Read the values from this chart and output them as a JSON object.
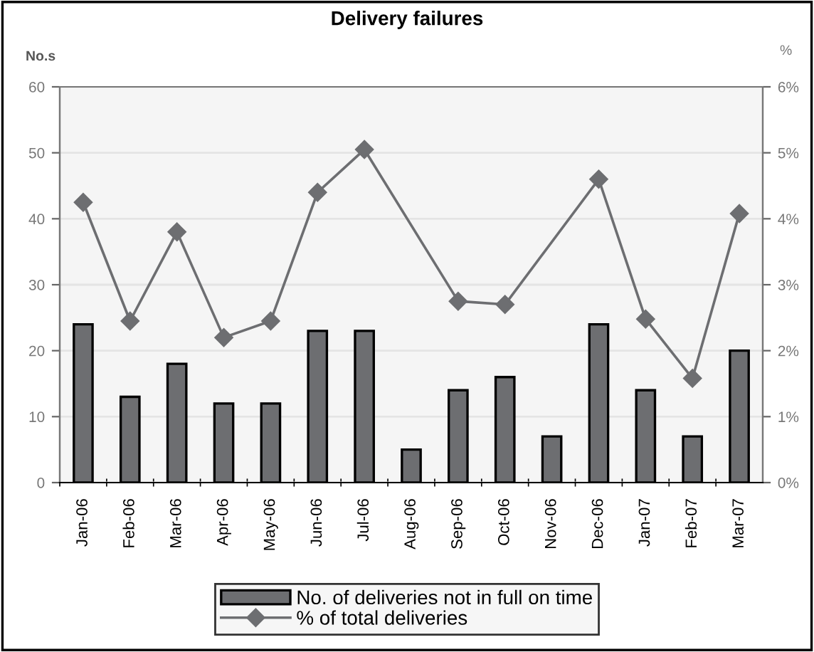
{
  "chart_data": {
    "type": "bar",
    "title": "Delivery failures",
    "ylabel": "No.s",
    "y2label": "%",
    "categories": [
      "Jan-06",
      "Feb-06",
      "Mar-06",
      "Apr-06",
      "May-06",
      "Jun-06",
      "Jul-06",
      "Aug-06",
      "Sep-06",
      "Oct-06",
      "Nov-06",
      "Dec-06",
      "Jan-07",
      "Feb-07",
      "Mar-07"
    ],
    "series": [
      {
        "name": "No. of deliveries not in full on time",
        "color": "#6d6e71",
        "values": [
          24,
          13,
          18,
          12,
          12,
          23,
          23,
          5,
          14,
          16,
          7,
          24,
          14,
          7,
          20
        ]
      },
      {
        "name": "% of total deliveries",
        "type": "line",
        "axis": "y2",
        "color": "#6d6e71",
        "marker": "diamond",
        "values": [
          4.25,
          2.45,
          3.8,
          2.2,
          2.45,
          4.4,
          5.05,
          null,
          2.75,
          2.7,
          null,
          4.6,
          2.48,
          1.58,
          4.08
        ]
      }
    ],
    "ylim": [
      0,
      60
    ],
    "yticks": [
      0,
      10,
      20,
      30,
      40,
      50,
      60
    ],
    "y2lim": [
      0,
      6
    ],
    "y2ticks": [
      {
        "value": 0,
        "label": "0%"
      },
      {
        "value": 1,
        "label": "1%"
      },
      {
        "value": 2,
        "label": "2%"
      },
      {
        "value": 3,
        "label": "3%"
      },
      {
        "value": 4,
        "label": "4%"
      },
      {
        "value": 5,
        "label": "5%"
      },
      {
        "value": 6,
        "label": "6%"
      }
    ],
    "grid": "y",
    "legend": "bottom"
  }
}
